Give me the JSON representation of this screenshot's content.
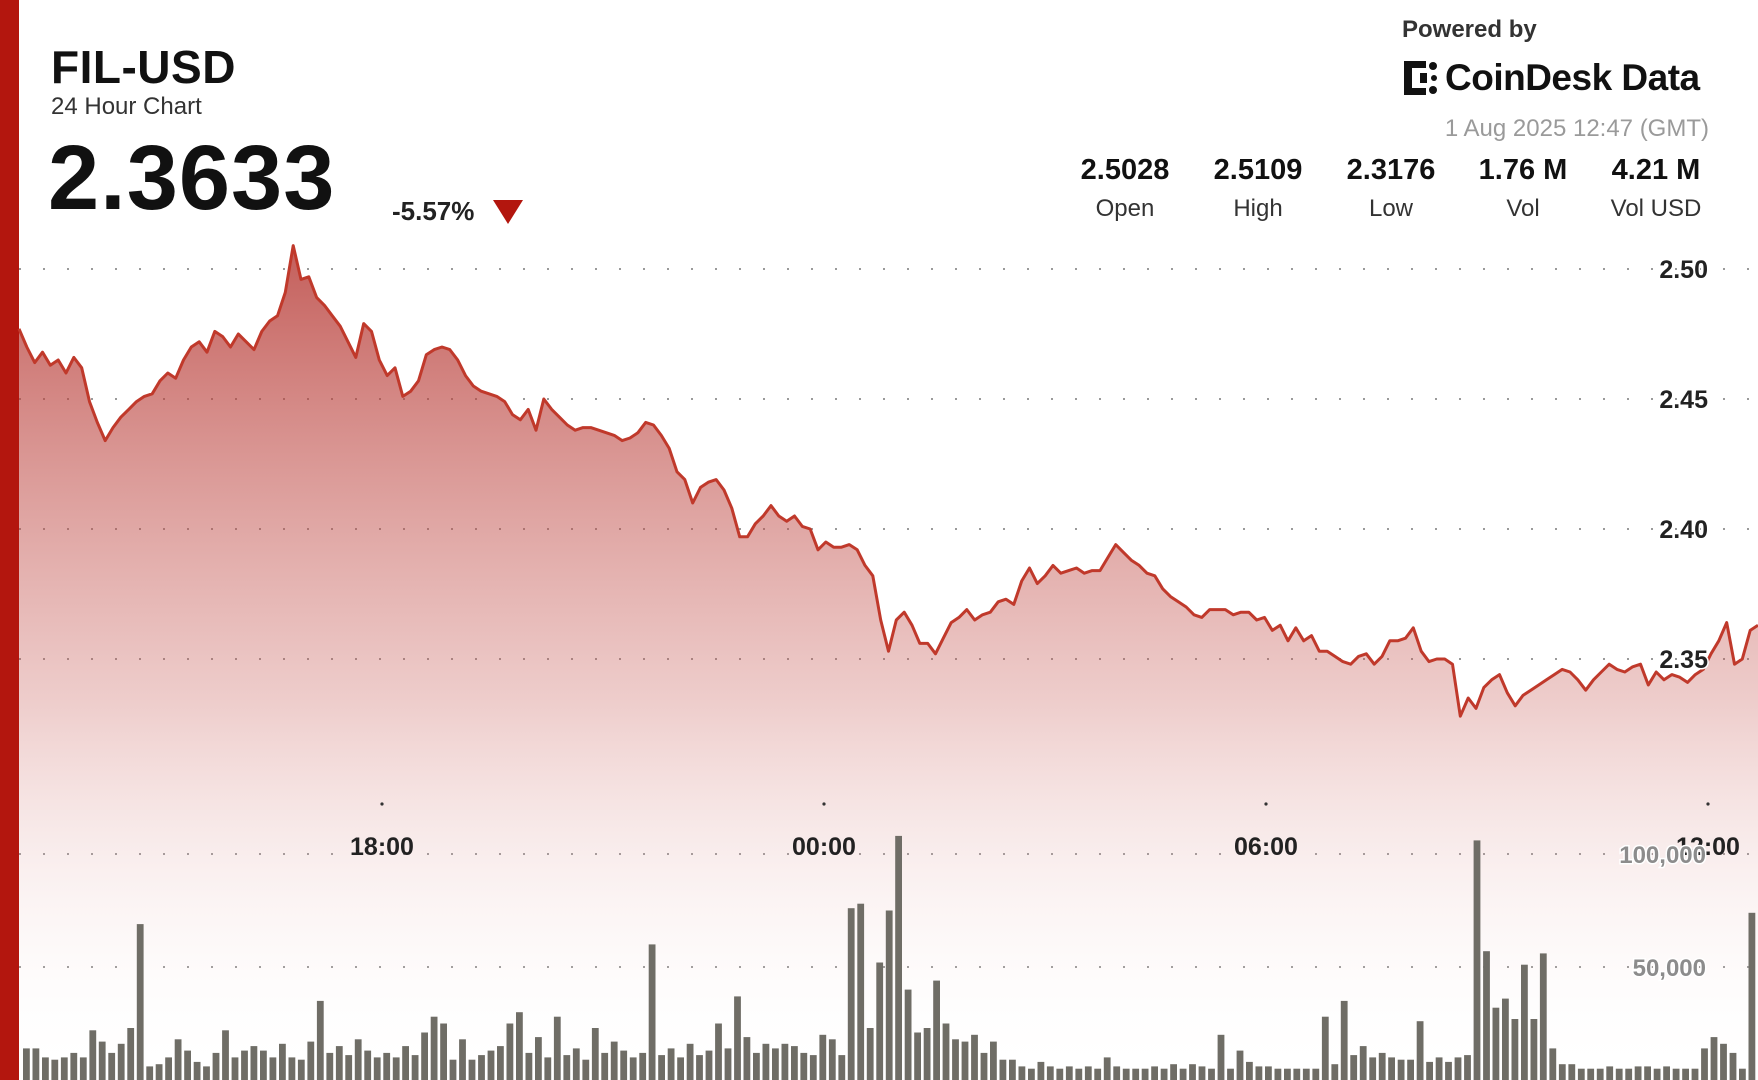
{
  "header": {
    "pair": "FIL-USD",
    "subtitle": "24 Hour Chart",
    "price": "2.3633",
    "change": "-5.57%",
    "direction": "down"
  },
  "branding": {
    "powered_by": "Powered by",
    "brand_name": "CoinDesk Data",
    "timestamp": "1 Aug 2025 12:47 (GMT)"
  },
  "stats": [
    {
      "value": "2.5028",
      "label": "Open"
    },
    {
      "value": "2.5109",
      "label": "High"
    },
    {
      "value": "2.3176",
      "label": "Low"
    },
    {
      "value": "1.76 M",
      "label": "Vol"
    },
    {
      "value": "4.21 M",
      "label": "Vol USD"
    }
  ],
  "colors": {
    "accent": "#b3160e",
    "price_line": "#c0392b",
    "area_fill": "#b3312c",
    "volume_bar": "#6f6d66"
  },
  "chart_data": [
    {
      "type": "area",
      "series": [
        {
          "values": [
            2.477,
            2.47,
            2.464,
            2.468,
            2.463,
            2.465,
            2.46,
            2.466,
            2.462,
            2.449,
            2.441,
            2.434,
            2.439,
            2.443,
            2.446,
            2.449,
            2.451,
            2.452,
            2.457,
            2.46,
            2.458,
            2.465,
            2.47,
            2.472,
            2.468,
            2.476,
            2.474,
            2.47,
            2.475,
            2.472,
            2.469,
            2.476,
            2.48,
            2.482,
            2.491,
            2.509,
            2.496,
            2.497,
            2.489,
            2.486,
            2.482,
            2.478,
            2.472,
            2.466,
            2.479,
            2.476,
            2.465,
            2.459,
            2.462,
            2.451,
            2.453,
            2.457,
            2.467,
            2.469,
            2.47,
            2.469,
            2.465,
            2.459,
            2.455,
            2.453,
            2.452,
            2.451,
            2.449,
            2.444,
            2.442,
            2.446,
            2.438,
            2.45,
            2.446,
            2.443,
            2.44,
            2.438,
            2.439,
            2.439,
            2.438,
            2.437,
            2.436,
            2.434,
            2.435,
            2.437,
            2.441,
            2.44,
            2.436,
            2.431,
            2.422,
            2.419,
            2.41,
            2.416,
            2.418,
            2.419,
            2.415,
            2.408,
            2.397,
            2.397,
            2.402,
            2.405,
            2.409,
            2.405,
            2.403,
            2.405,
            2.401,
            2.4,
            2.392,
            2.395,
            2.393,
            2.393,
            2.394,
            2.392,
            2.386,
            2.382,
            2.365,
            2.353,
            2.365,
            2.368,
            2.363,
            2.356,
            2.356,
            2.352,
            2.358,
            2.364,
            2.366,
            2.369,
            2.365,
            2.367,
            2.368,
            2.372,
            2.373,
            2.371,
            2.38,
            2.385,
            2.379,
            2.382,
            2.386,
            2.383,
            2.384,
            2.385,
            2.383,
            2.384,
            2.384,
            2.389,
            2.394,
            2.391,
            2.388,
            2.386,
            2.383,
            2.382,
            2.377,
            2.374,
            2.372,
            2.37,
            2.367,
            2.366,
            2.369,
            2.369,
            2.369,
            2.367,
            2.368,
            2.368,
            2.365,
            2.366,
            2.361,
            2.363,
            2.357,
            2.362,
            2.357,
            2.359,
            2.353,
            2.353,
            2.351,
            2.349,
            2.348,
            2.351,
            2.352,
            2.348,
            2.351,
            2.357,
            2.357,
            2.358,
            2.362,
            2.353,
            2.349,
            2.35,
            2.35,
            2.348,
            2.328,
            2.335,
            2.331,
            2.339,
            2.342,
            2.344,
            2.337,
            2.332,
            2.336,
            2.338,
            2.34,
            2.342,
            2.344,
            2.346,
            2.345,
            2.342,
            2.338,
            2.342,
            2.345,
            2.348,
            2.346,
            2.345,
            2.347,
            2.348,
            2.34,
            2.345,
            2.342,
            2.344,
            2.343,
            2.341,
            2.344,
            2.346,
            2.352,
            2.357,
            2.364,
            2.348,
            2.35,
            2.361,
            2.363
          ]
        }
      ],
      "x_tick_labels": [
        "18:00",
        "00:00",
        "06:00",
        "12:00"
      ],
      "y_tick_labels": [
        "2.50",
        "2.45",
        "2.40",
        "2.35"
      ],
      "ylim": [
        2.3,
        2.51
      ],
      "grid": true
    },
    {
      "type": "bar",
      "series": [
        {
          "values": [
            14000,
            14000,
            10000,
            9000,
            10000,
            12000,
            10000,
            22000,
            17000,
            12000,
            16000,
            23000,
            69000,
            6000,
            7000,
            10000,
            18000,
            13000,
            8000,
            6000,
            12000,
            22000,
            10000,
            13000,
            15000,
            13000,
            10000,
            16000,
            10000,
            9000,
            17000,
            35000,
            12000,
            15000,
            11000,
            18000,
            13000,
            10000,
            12000,
            10000,
            15000,
            11000,
            21000,
            28000,
            25000,
            9000,
            18000,
            9000,
            11000,
            13000,
            15000,
            25000,
            30000,
            12000,
            19000,
            10000,
            28000,
            11000,
            14000,
            9000,
            23000,
            12000,
            17000,
            13000,
            10000,
            12000,
            60000,
            11000,
            14000,
            10000,
            16000,
            11000,
            13000,
            25000,
            14000,
            37000,
            19000,
            12000,
            16000,
            14000,
            16000,
            15000,
            12000,
            11000,
            20000,
            18000,
            11000,
            76000,
            78000,
            23000,
            52000,
            75000,
            108000,
            40000,
            21000,
            23000,
            44000,
            25000,
            18000,
            17000,
            20000,
            12000,
            17000,
            9000,
            9000,
            6000,
            5000,
            8000,
            6000,
            5000,
            6000,
            5000,
            6000,
            5000,
            10000,
            6000,
            5000,
            5000,
            5000,
            6000,
            5000,
            7000,
            5000,
            7000,
            6000,
            5000,
            20000,
            5000,
            13000,
            8000,
            6000,
            6000,
            5000,
            5000,
            5000,
            5000,
            5000,
            28000,
            7000,
            35000,
            11000,
            15000,
            10000,
            12000,
            10000,
            9000,
            9000,
            26000,
            8000,
            10000,
            8000,
            10000,
            11000,
            106000,
            57000,
            32000,
            36000,
            27000,
            51000,
            27000,
            56000,
            14000,
            7000,
            7000,
            5000,
            5000,
            5000,
            6000,
            5000,
            5000,
            6000,
            6000,
            5000,
            6000,
            5000,
            5000,
            5000,
            14000,
            19000,
            16000,
            12000,
            5000,
            74000
          ]
        }
      ],
      "y_tick_labels": [
        "100,000",
        "50,000"
      ],
      "ylim": [
        0,
        175000
      ]
    }
  ]
}
